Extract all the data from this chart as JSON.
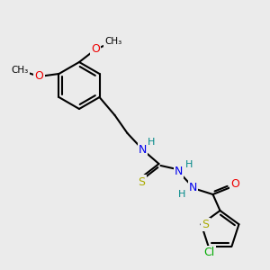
{
  "bg_color": "#ebebeb",
  "bond_color": "#000000",
  "bond_width": 1.5,
  "atom_colors": {
    "N": "#0000ee",
    "O": "#ee0000",
    "S": "#aaaa00",
    "Cl": "#00aa00",
    "H": "#008888",
    "C": "#000000"
  },
  "figsize": [
    3.0,
    3.0
  ],
  "dpi": 100
}
